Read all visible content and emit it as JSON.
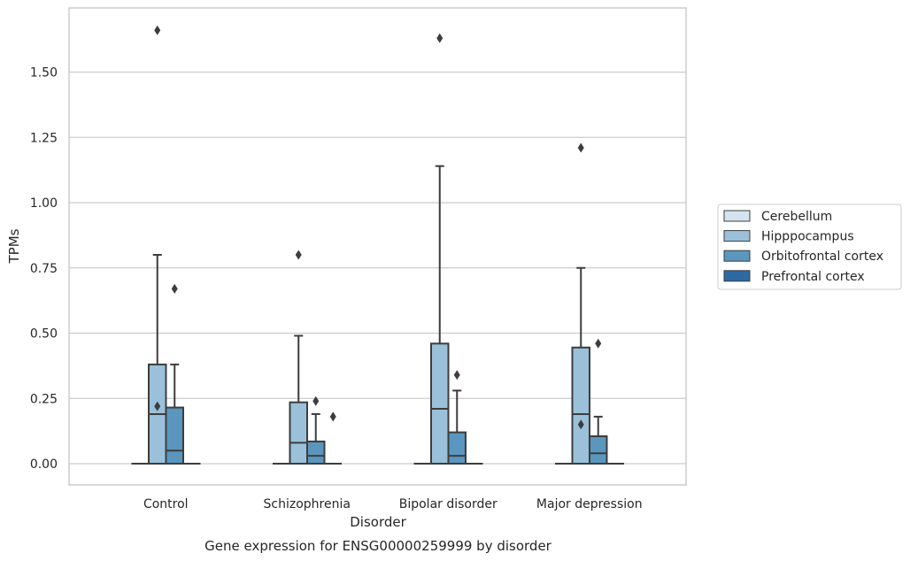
{
  "chart_data": {
    "type": "box",
    "title": "Gene expression for ENSG00000259999 by disorder",
    "xlabel": "Disorder",
    "ylabel": "TPMs",
    "ylim": [
      -0.08,
      1.74
    ],
    "yticks": [
      "0.00",
      "0.25",
      "0.50",
      "0.75",
      "1.00",
      "1.25",
      "1.50"
    ],
    "grid": "horizontal",
    "legend_position": "right",
    "categories": [
      "Control",
      "Schizophrenia",
      "Bipolar disorder",
      "Major depression"
    ],
    "series": [
      {
        "name": "Cerebellum",
        "color": "#d4e3ef",
        "boxes": [
          {
            "q1": 0,
            "median": 0,
            "q3": 0,
            "whisker_low": 0,
            "whisker_high": 0,
            "outliers": []
          },
          {
            "q1": 0,
            "median": 0,
            "q3": 0,
            "whisker_low": 0,
            "whisker_high": 0,
            "outliers": []
          },
          {
            "q1": 0,
            "median": 0,
            "q3": 0,
            "whisker_low": 0,
            "whisker_high": 0,
            "outliers": []
          },
          {
            "q1": 0,
            "median": 0,
            "q3": 0,
            "whisker_low": 0,
            "whisker_high": 0,
            "outliers": []
          }
        ]
      },
      {
        "name": "Hipppocampus",
        "color": "#9ac1d9",
        "boxes": [
          {
            "q1": 0,
            "median": 0.19,
            "q3": 0.38,
            "whisker_low": 0,
            "whisker_high": 0.8,
            "outliers": [
              0.22,
              1.66
            ]
          },
          {
            "q1": 0,
            "median": 0.08,
            "q3": 0.235,
            "whisker_low": 0,
            "whisker_high": 0.49,
            "outliers": [
              0.8
            ]
          },
          {
            "q1": 0,
            "median": 0.21,
            "q3": 0.46,
            "whisker_low": 0,
            "whisker_high": 1.14,
            "outliers": [
              1.63
            ]
          },
          {
            "q1": 0,
            "median": 0.19,
            "q3": 0.445,
            "whisker_low": 0,
            "whisker_high": 0.75,
            "outliers": [
              0.15,
              1.21
            ]
          }
        ]
      },
      {
        "name": "Orbitofrontal cortex",
        "color": "#5b96bf",
        "boxes": [
          {
            "q1": 0,
            "median": 0.05,
            "q3": 0.215,
            "whisker_low": 0,
            "whisker_high": 0.38,
            "outliers": [
              0.67
            ]
          },
          {
            "q1": 0,
            "median": 0.03,
            "q3": 0.085,
            "whisker_low": 0,
            "whisker_high": 0.19,
            "outliers": [
              0.24
            ]
          },
          {
            "q1": 0,
            "median": 0.03,
            "q3": 0.12,
            "whisker_low": 0,
            "whisker_high": 0.28,
            "outliers": [
              0.34
            ]
          },
          {
            "q1": 0,
            "median": 0.04,
            "q3": 0.105,
            "whisker_low": 0,
            "whisker_high": 0.18,
            "outliers": [
              0.46
            ]
          }
        ]
      },
      {
        "name": "Prefrontal cortex",
        "color": "#2c6aa3",
        "boxes": [
          {
            "q1": 0,
            "median": 0,
            "q3": 0,
            "whisker_low": 0,
            "whisker_high": 0,
            "outliers": []
          },
          {
            "q1": 0,
            "median": 0,
            "q3": 0,
            "whisker_low": 0,
            "whisker_high": 0,
            "outliers": [
              0.18
            ]
          },
          {
            "q1": 0,
            "median": 0,
            "q3": 0,
            "whisker_low": 0,
            "whisker_high": 0,
            "outliers": []
          },
          {
            "q1": 0,
            "median": 0,
            "q3": 0,
            "whisker_low": 0,
            "whisker_high": 0,
            "outliers": []
          }
        ]
      }
    ]
  }
}
